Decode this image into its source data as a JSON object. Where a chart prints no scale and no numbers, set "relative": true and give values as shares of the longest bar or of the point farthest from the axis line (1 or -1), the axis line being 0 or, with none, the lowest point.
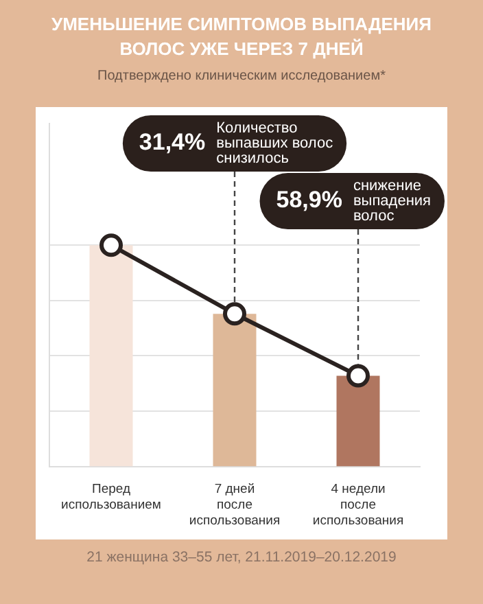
{
  "chart_data": {
    "type": "bar",
    "title": "УМЕНЬШЕНИЕ СИМПТОМОВ ВЫПАДЕНИЯ ВОЛОС УЖЕ ЧЕРЕЗ 7 ДНЕЙ",
    "subtitle": "Подтверждено клиническим исследованием*",
    "categories": [
      "Перед использованием",
      "7 дней после использования",
      "4 недели после использования"
    ],
    "relative": true,
    "grid": "y",
    "legend": false,
    "marker": "circle",
    "line_style": "solid",
    "series": [
      {
        "colors": [
          "#f6e4da",
          "#deb898",
          "#b07660"
        ],
        "values": [
          1,
          0.69,
          0.41
        ]
      },
      {
        "type": "line",
        "color": "#2a2220",
        "values": [
          1,
          0.69,
          0.41
        ]
      }
    ],
    "annotations": [
      {
        "text": "31,4% Количество выпавших волос снизилось",
        "x": "7 дней после использования",
        "y": 0.69
      },
      {
        "text": "58,9% снижение выпадения волос",
        "x": "4 недели после использования",
        "y": 0.41
      },
      "21 женщина 33–55 лет, 21.11.2019–20.12.2019"
    ]
  }
}
